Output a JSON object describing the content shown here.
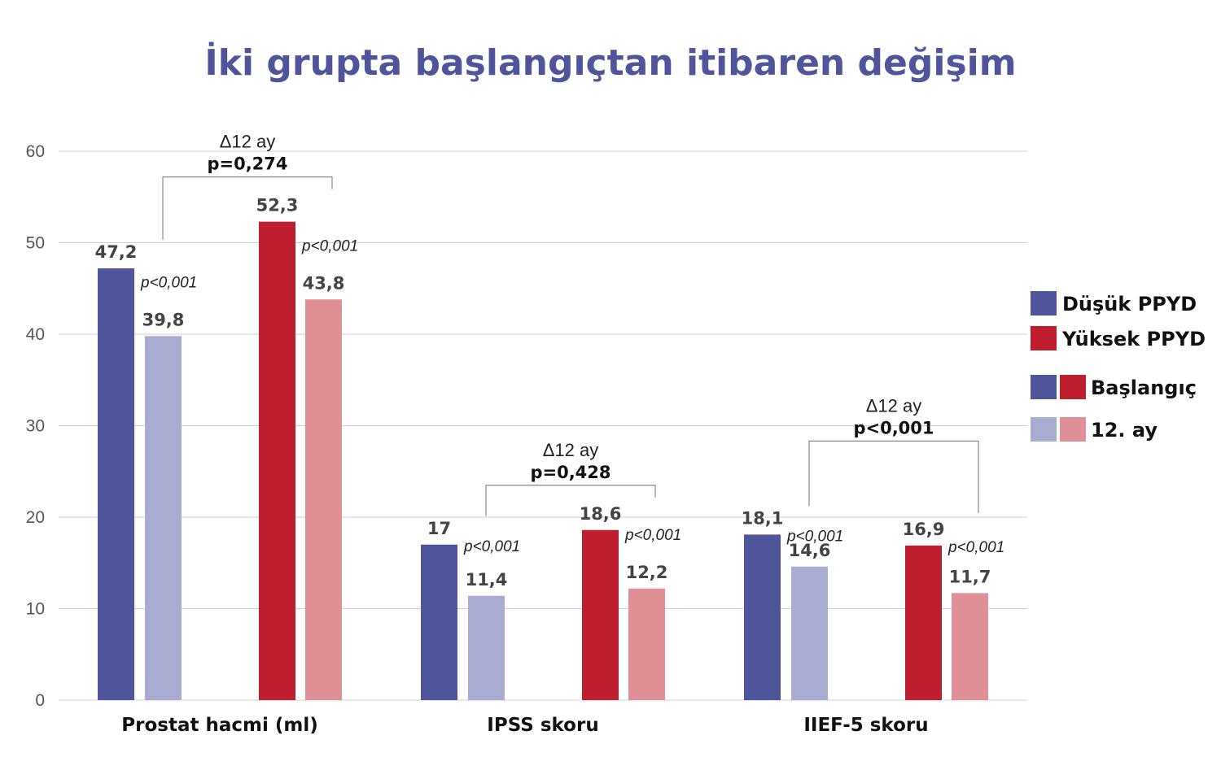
{
  "chart_data": {
    "type": "bar",
    "title": "İki grupta başlangıçtan itibaren değişim",
    "categories": [
      "Prostat hacmi (ml)",
      "IPSS skoru",
      "IIEF-5 skoru"
    ],
    "series": [
      {
        "name": "Düşük PPYD – Başlangıç",
        "values": [
          47.2,
          17,
          18.1
        ],
        "labels": [
          "47,2",
          "17",
          "18,1"
        ],
        "color": "#4f559b"
      },
      {
        "name": "Düşük PPYD – 12. ay",
        "values": [
          39.8,
          11.4,
          14.6
        ],
        "labels": [
          "39,8",
          "11,4",
          "14,6"
        ],
        "color": "#a8acd0"
      },
      {
        "name": "Yüksek PPYD – Başlangıç",
        "values": [
          52.3,
          18.6,
          16.9
        ],
        "labels": [
          "52,3",
          "18,6",
          "16,9"
        ],
        "color": "#be1e2d"
      },
      {
        "name": "Yüksek PPYD – 12. ay",
        "values": [
          43.8,
          12.2,
          11.7
        ],
        "labels": [
          "43,8",
          "12,2",
          "11,7"
        ],
        "color": "#e08f96"
      }
    ],
    "within_group_p": [
      [
        "p<0,001",
        "p<0,001"
      ],
      [
        "p<0,001",
        "p<0,001"
      ],
      [
        "p<0,001",
        "p<0,001"
      ]
    ],
    "comparisons": [
      {
        "label": "Δ12 ay",
        "p": "p=0,274"
      },
      {
        "label": "Δ12 ay",
        "p": "p=0,428"
      },
      {
        "label": "Δ12 ay",
        "p": "p<0,001"
      }
    ],
    "ylim": [
      0,
      60
    ],
    "yticks": [
      0,
      10,
      20,
      30,
      40,
      50,
      60
    ],
    "grid": true,
    "legend": {
      "position": "right",
      "groups": [
        {
          "label": "Düşük PPYD",
          "color": "#4f559b"
        },
        {
          "label": "Yüksek PPYD",
          "color": "#be1e2d"
        }
      ],
      "timepoints": [
        {
          "label": "Başlangıç",
          "colors": [
            "#4f559b",
            "#be1e2d"
          ]
        },
        {
          "label": "12. ay",
          "colors": [
            "#a8acd0",
            "#e08f96"
          ]
        }
      ]
    },
    "colors": {
      "title": "#4f559b",
      "grid": "#cfcfcf",
      "bracket": "#888888"
    }
  }
}
